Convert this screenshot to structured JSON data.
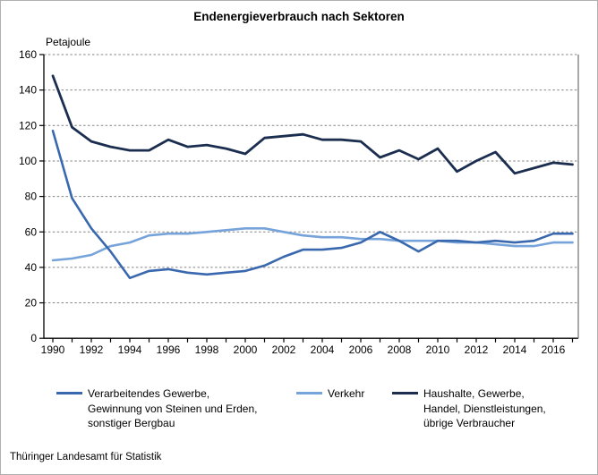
{
  "chart_data": {
    "type": "line",
    "title": "Endenergieverbrauch nach Sektoren",
    "ylabel": "Petajoule",
    "x": [
      1990,
      1991,
      1992,
      1993,
      1994,
      1995,
      1996,
      1997,
      1998,
      1999,
      2000,
      2001,
      2002,
      2003,
      2004,
      2005,
      2006,
      2007,
      2008,
      2009,
      2010,
      2011,
      2012,
      2013,
      2014,
      2015,
      2016,
      2017
    ],
    "x_label_interval": 2,
    "y_ticks": [
      0,
      20,
      40,
      60,
      80,
      100,
      120,
      140,
      160
    ],
    "ylim": [
      0,
      160
    ],
    "grid": "horizontal-dashed",
    "legend_position": "bottom",
    "series": [
      {
        "id": "verarbeitendes-gewerbe",
        "name": "Verarbeitendes Gewerbe, Gewinnung von Steinen und Erden, sonstiger Bergbau",
        "color": "#3a68ae",
        "values": [
          117,
          79,
          62,
          49,
          34,
          38,
          39,
          37,
          36,
          37,
          38,
          41,
          46,
          50,
          50,
          51,
          54,
          60,
          55,
          49,
          55,
          55,
          54,
          55,
          54,
          55,
          59,
          59
        ]
      },
      {
        "id": "verkehr",
        "name": "Verkehr",
        "color": "#76a3d9",
        "values": [
          44,
          45,
          47,
          52,
          54,
          58,
          59,
          59,
          60,
          61,
          62,
          62,
          60,
          58,
          57,
          57,
          56,
          56,
          55,
          55,
          55,
          54,
          54,
          53,
          52,
          52,
          54,
          54
        ]
      },
      {
        "id": "haushalte",
        "name": "Haushalte, Gewerbe, Handel, Dienstleistungen, übrige Verbraucher",
        "color": "#1c2e4f",
        "values": [
          148,
          119,
          111,
          108,
          106,
          106,
          112,
          108,
          109,
          107,
          104,
          113,
          114,
          115,
          112,
          112,
          111,
          102,
          106,
          101,
          107,
          94,
          100,
          105,
          93,
          96,
          99,
          98
        ]
      }
    ]
  },
  "legend": {
    "items": [
      {
        "color": "#3a68ae",
        "label_lines": [
          "Verarbeitendes Gewerbe,",
          "Gewinnung von Steinen und Erden,",
          "sonstiger Bergbau"
        ]
      },
      {
        "color": "#76a3d9",
        "label_lines": [
          "Verkehr"
        ]
      },
      {
        "color": "#1c2e4f",
        "label_lines": [
          "Haushalte, Gewerbe,",
          "Handel, Dienstleistungen,",
          "übrige Verbraucher"
        ]
      }
    ]
  },
  "footer": {
    "source": "Thüringer Landesamt für Statistik"
  },
  "colors": {
    "axis": "#000000",
    "plot_right_border": "#707070",
    "gridline": "#858585",
    "page_border": "#b0b0b0"
  }
}
